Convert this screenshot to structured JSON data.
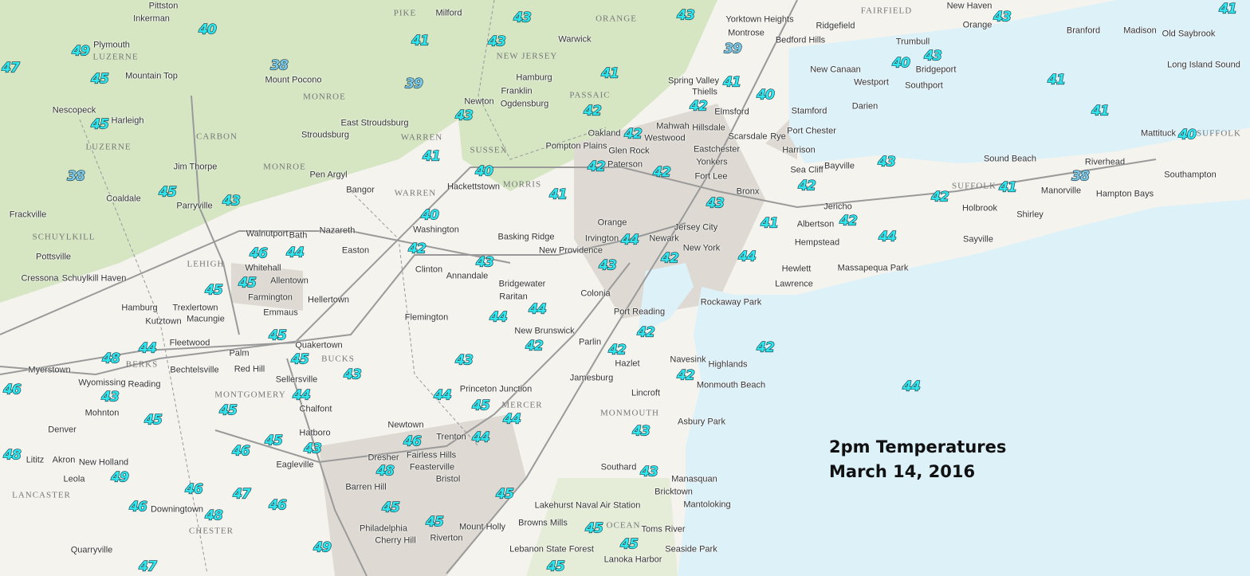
{
  "map": {
    "colors": {
      "water": "#ddf1f9",
      "land": "#f4f3ee",
      "forest": "#cfe3b8",
      "urban": "#dedad3",
      "road": "#9a9a9a",
      "temp_fill": "#2ee6ee",
      "temp_outline": "#10303a"
    },
    "annotation": {
      "line1": "2pm Temperatures",
      "line2": "March 14, 2016"
    },
    "temperatures": [
      40,
      49,
      47,
      45,
      38,
      41,
      39,
      43,
      43,
      45,
      43,
      38,
      45,
      43,
      41,
      40,
      40,
      46,
      44,
      42,
      43,
      45,
      45,
      45,
      44,
      48,
      45,
      43,
      43,
      46,
      43,
      45,
      44,
      45,
      44,
      45,
      44,
      46,
      45,
      46,
      43,
      48,
      49,
      48,
      46,
      47,
      46,
      48,
      46,
      45,
      45,
      45,
      49,
      47,
      44,
      43,
      39,
      41,
      42,
      41,
      40,
      42,
      42,
      42,
      42,
      41,
      43,
      41,
      44,
      42,
      44,
      43,
      44,
      44,
      42,
      42,
      42,
      42,
      42,
      44,
      43,
      43,
      45,
      45,
      45,
      43,
      41,
      40,
      43,
      41,
      41,
      40,
      43,
      42,
      42,
      41,
      38,
      42,
      44
    ],
    "places": [
      "Pittston",
      "Inkerman",
      "Plymouth",
      "Mountain Top",
      "Nescopeck",
      "Harleigh",
      "Mount Pocono",
      "Stroudsburg",
      "East Stroudsburg",
      "Pen Argyl",
      "Bangor",
      "Jim Thorpe",
      "Coaldale",
      "Parryville",
      "Frackville",
      "Pottsville",
      "Cressona",
      "Schuylkill Haven",
      "Walnutport",
      "Bath",
      "Nazareth",
      "Whitehall",
      "Allentown",
      "Easton",
      "Farmington",
      "Hellertown",
      "Emmaus",
      "Hamburg",
      "Trexlertown",
      "Kutztown",
      "Macungie",
      "Fleetwood",
      "Palm",
      "Quakertown",
      "Red Hill",
      "Bechtelsville",
      "Myerstown",
      "Wyomissing",
      "Reading",
      "Mohnton",
      "Sellersville",
      "Chalfont",
      "Denver",
      "Lititz",
      "Akron",
      "Leola",
      "New Holland",
      "Eagleville",
      "Hatboro",
      "Newtown",
      "Fairless Hills",
      "Feasterville",
      "Dresher",
      "Barren Hill",
      "Bristol",
      "Downingtown",
      "Philadelphia",
      "Riverton",
      "Cherry Hill",
      "Quarryville",
      "Flemington",
      "Clinton",
      "Annandale",
      "Washington",
      "Milford",
      "Warwick",
      "Hamburg",
      "Franklin",
      "Ogdensburg",
      "Newton",
      "Hackettstown",
      "Pompton Plains",
      "Paterson",
      "Glen Rock",
      "Westwood",
      "Oakland",
      "Mahwah",
      "Spring Valley",
      "Thiells",
      "Montrose",
      "Yorktown Heights",
      "Bedford Hills",
      "Ridgefield",
      "New Canaan",
      "Westport",
      "Trumbull",
      "Bridgeport",
      "Southport",
      "Stamford",
      "Darien",
      "Port Chester",
      "Harrison",
      "Rye",
      "Eastchester",
      "Scarsdale",
      "Elmsford",
      "Hillsdale",
      "Yonkers",
      "Fort Lee",
      "Bronx",
      "Jersey City",
      "Newark",
      "Irvington",
      "Orange",
      "New York",
      "Basking Ridge",
      "New Providence",
      "Bridgewater",
      "Raritan",
      "New Brunswick",
      "Colonia",
      "Port Reading",
      "Parlin",
      "Hazlet",
      "Navesink",
      "Highlands",
      "Monmouth Beach",
      "Jamesburg",
      "Lincroft",
      "Asbury Park",
      "Princeton Junction",
      "Manasquan",
      "Southard",
      "Bricktown",
      "Mantoloking",
      "Toms River",
      "Seaside Park",
      "Lanoka Harbor",
      "Lakehurst Naval Air Station",
      "Browns Mills",
      "Lebanon State Forest",
      "Mount Holly",
      "Trenton",
      "Rockaway Park",
      "Lawrence",
      "Hewlett",
      "Massapequa Park",
      "Hempstead",
      "Albertson",
      "Jericho",
      "Sea Cliff",
      "Bayville",
      "Holbrook",
      "Sayville",
      "Shirley",
      "Manorville",
      "Riverhead",
      "Hampton Bays",
      "Southampton",
      "Mattituck",
      "Sound Beach",
      "Branford",
      "Madison",
      "Old Saybrook",
      "Orange",
      "New Haven",
      "Long Island Sound"
    ],
    "counties": [
      "LUZERNE",
      "LUZERNE",
      "MONROE",
      "MONROE",
      "CARBON",
      "SCHUYLKILL",
      "LEHIGH",
      "BERKS",
      "MONTGOMERY",
      "BUCKS",
      "CHESTER",
      "LANCASTER",
      "WARREN",
      "WARREN",
      "SUSSEX",
      "MORRIS",
      "PASSAIC",
      "ORANGE",
      "FAIRFIELD",
      "SUFFOLK",
      "SUFFOLK",
      "MONMOUTH",
      "MERCER",
      "OCEAN",
      "PIKE",
      "NEW JERSEY"
    ]
  }
}
